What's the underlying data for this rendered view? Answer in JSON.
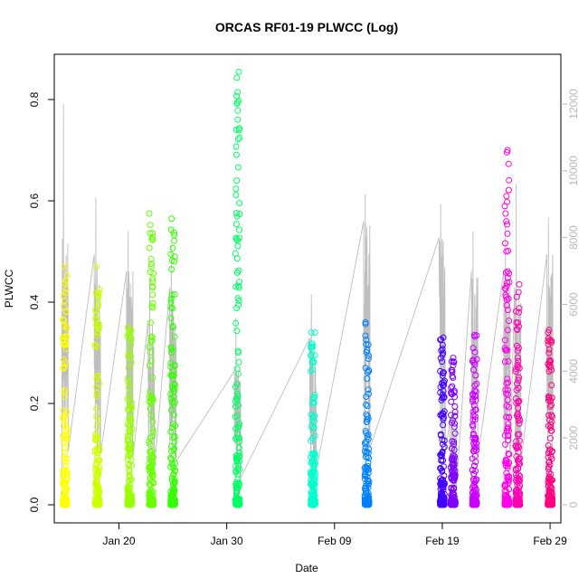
{
  "chart_data": {
    "type": "scatter",
    "title": "ORCAS RF01-19 PLWCC (Log)",
    "xlabel": "Date",
    "ylabel": "PLWCC",
    "x_type": "date",
    "xlim": [
      "2016-01-14",
      "2016-03-01"
    ],
    "ylim": [
      0,
      0.9
    ],
    "y2lim": [
      0,
      13000
    ],
    "x_ticks": [
      {
        "date": "2016-01-20",
        "label": "Jan 20"
      },
      {
        "date": "2016-01-30",
        "label": "Jan 30"
      },
      {
        "date": "2016-02-09",
        "label": "Feb 09"
      },
      {
        "date": "2016-02-19",
        "label": "Feb 19"
      },
      {
        "date": "2016-02-29",
        "label": "Feb 29"
      }
    ],
    "y_ticks": [
      "0.0",
      "0.2",
      "0.4",
      "0.6",
      "0.8"
    ],
    "y2_ticks": [
      "0",
      "2000",
      "4000",
      "6000",
      "8000",
      "10000",
      "12000"
    ],
    "grid": false,
    "legend": "none",
    "line_color": "#bebebe",
    "flights": [
      {
        "date": "2016-01-15",
        "color": "#ffff00",
        "ymax": 0.47,
        "line_max": 12000,
        "line_typical": 8000
      },
      {
        "date": "2016-01-18",
        "color": "#ccff00",
        "ymax": 0.47,
        "line_max": 9200,
        "line_typical": 7500
      },
      {
        "date": "2016-01-21",
        "color": "#99ff00",
        "ymax": 0.35,
        "line_max": 8200,
        "line_typical": 7000
      },
      {
        "date": "2016-01-23",
        "color": "#66ff00",
        "ymax": 0.575,
        "line_max": 6800,
        "line_typical": 5500
      },
      {
        "date": "2016-01-25",
        "color": "#33ff00",
        "ymax": 0.565,
        "line_max": 7800,
        "line_typical": 6500
      },
      {
        "date": "2016-01-31",
        "color": "#00ff66",
        "ymax": 0.855,
        "line_max": 5600,
        "line_typical": 4000
      },
      {
        "date": "2016-02-07",
        "color": "#00ffcc",
        "ymax": 0.34,
        "line_max": 6300,
        "line_typical": 5000
      },
      {
        "date": "2016-02-12",
        "color": "#0080ff",
        "ymax": 0.36,
        "line_max": 9300,
        "line_typical": 8500
      },
      {
        "date": "2016-02-19",
        "color": "#4000ff",
        "ymax": 0.33,
        "line_max": 9000,
        "line_typical": 8000
      },
      {
        "date": "2016-02-20",
        "color": "#8000ff",
        "ymax": 0.29,
        "line_max": 2700,
        "line_typical": 2500
      },
      {
        "date": "2016-02-22",
        "color": "#cc00ff",
        "ymax": 0.335,
        "line_max": 8200,
        "line_typical": 7000
      },
      {
        "date": "2016-02-25",
        "color": "#ff00e6",
        "ymax": 0.7,
        "line_max": 8500,
        "line_typical": 7000
      },
      {
        "date": "2016-02-26",
        "color": "#ff00b3",
        "ymax": 0.435,
        "line_max": 9600,
        "line_typical": 6500
      },
      {
        "date": "2016-02-29",
        "color": "#ff0080",
        "ymax": 0.345,
        "line_max": 8600,
        "line_typical": 7500
      }
    ]
  }
}
